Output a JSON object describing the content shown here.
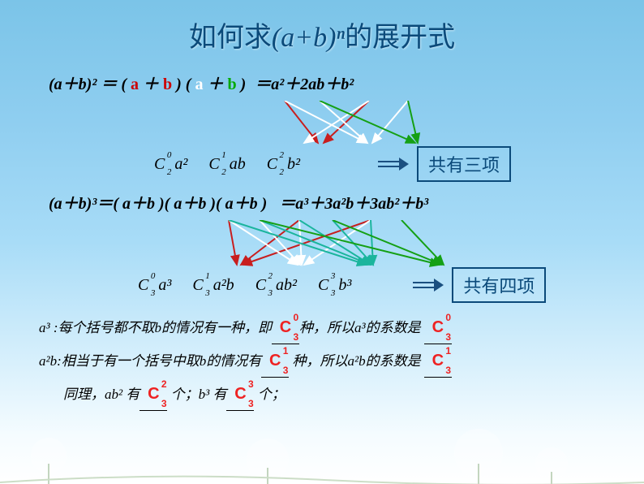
{
  "title": {
    "prefix": "如何求",
    "math": "(a+b)ⁿ",
    "suffix": "的展开式",
    "color": "#0b4a7a",
    "fontsize": 34
  },
  "eq2": {
    "lhs": "(a＋b)² ＝",
    "factor1": {
      "open": "(",
      "a": "a",
      "plus": " ＋ ",
      "b": "b",
      "close": ")"
    },
    "factor2": {
      "open": "(",
      "a": "a",
      "plus": " ＋ ",
      "b": "b",
      "close": ")"
    },
    "rhs": "＝a²＋2ab＋b²",
    "coefs": [
      {
        "c_n": "2",
        "c_k": "0",
        "term": "a²"
      },
      {
        "c_n": "2",
        "c_k": "1",
        "term": "ab"
      },
      {
        "c_n": "2",
        "c_k": "2",
        "term": "b²"
      }
    ],
    "box_label": "共有三项",
    "arrows": {
      "red": [
        [
          174,
          0,
          215,
          52
        ],
        [
          278,
          0,
          222,
          52
        ]
      ],
      "white": [
        [
          174,
          0,
          275,
          52
        ],
        [
          278,
          0,
          198,
          52
        ],
        [
          217,
          0,
          276,
          52
        ],
        [
          326,
          0,
          282,
          52
        ]
      ],
      "green": [
        [
          217,
          0,
          335,
          52
        ],
        [
          326,
          0,
          338,
          52
        ]
      ]
    }
  },
  "eq3": {
    "lhs": "(a＋b)³＝",
    "factor1": "( a＋b )",
    "factor2": "( a＋b )",
    "factor3": "( a＋b )",
    "rhs": " ＝a³＋3a²b＋3ab²＋b³",
    "coefs": [
      {
        "c_n": "3",
        "c_k": "0",
        "term": "a³"
      },
      {
        "c_n": "3",
        "c_k": "1",
        "term": "a²b"
      },
      {
        "c_n": "3",
        "c_k": "2",
        "term": "ab²"
      },
      {
        "c_n": "3",
        "c_k": "3",
        "term": "b³"
      }
    ],
    "box_label": "共有四项",
    "arrows": {
      "red": [
        [
          125,
          0,
          135,
          55
        ],
        [
          212,
          0,
          140,
          55
        ],
        [
          300,
          0,
          142,
          55
        ]
      ],
      "white": [
        [
          125,
          0,
          210,
          55
        ],
        [
          212,
          0,
          215,
          55
        ],
        [
          300,
          0,
          218,
          55
        ],
        [
          163,
          0,
          213,
          55
        ]
      ],
      "teal": [
        [
          125,
          0,
          295,
          55
        ],
        [
          212,
          0,
          300,
          55
        ],
        [
          300,
          0,
          303,
          55
        ],
        [
          163,
          0,
          300,
          55
        ],
        [
          253,
          0,
          303,
          55
        ]
      ],
      "green": [
        [
          163,
          0,
          385,
          55
        ],
        [
          253,
          0,
          388,
          55
        ],
        [
          338,
          0,
          390,
          55
        ]
      ]
    }
  },
  "explain": {
    "line1": {
      "pre": "a³ :每个括号都不取b的情况有一种，即",
      "c1": {
        "n": "3",
        "k": "0"
      },
      "mid": "种，所以a³的系数是 ",
      "c2": {
        "n": "3",
        "k": "0"
      }
    },
    "line2": {
      "pre": "a²b:相当于有一个括号中取b的情况有",
      "c1": {
        "n": "3",
        "k": "1"
      },
      "mid": " 种，所以a²b的系数是 ",
      "c2": {
        "n": "3",
        "k": "1"
      }
    },
    "line3": {
      "pre": "同理，ab² 有",
      "c1": {
        "n": "3",
        "k": "2"
      },
      "mid": " 个；b³ 有",
      "c2": {
        "n": "3",
        "k": "3"
      },
      "post": " 个；"
    }
  },
  "colors": {
    "red": "#c81e1e",
    "white": "#ffffff",
    "green": "#15a015",
    "teal": "#1bb59d",
    "title": "#0b4a7a"
  }
}
